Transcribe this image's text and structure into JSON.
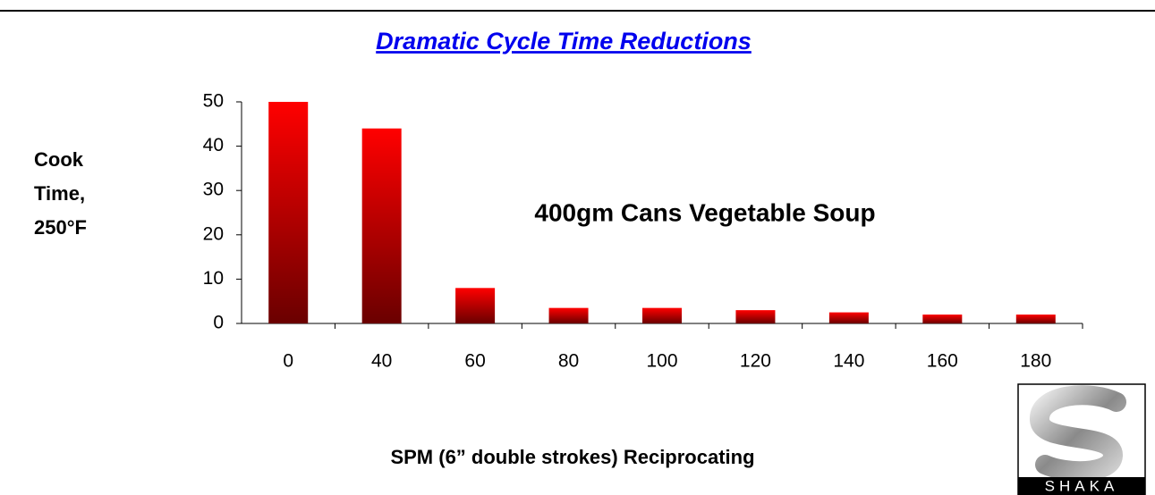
{
  "chart_data": {
    "type": "bar",
    "title": "Dramatic  Cycle Time Reductions",
    "y_label": [
      "Cook",
      "Time,",
      "250°F"
    ],
    "x_label": "SPM (6” double strokes) Reciprocating",
    "annotation": "400gm Cans Vegetable Soup",
    "logo_text": "SHAKA",
    "categories": [
      "0",
      "40",
      "60",
      "80",
      "100",
      "120",
      "140",
      "160",
      "180"
    ],
    "values": [
      50,
      44,
      8,
      3.5,
      3.5,
      3,
      2.5,
      2,
      2
    ],
    "color": "#ff0000",
    "ylim": [
      0,
      50
    ],
    "yticks": [
      0,
      10,
      20,
      30,
      40,
      50
    ],
    "grid": false
  }
}
